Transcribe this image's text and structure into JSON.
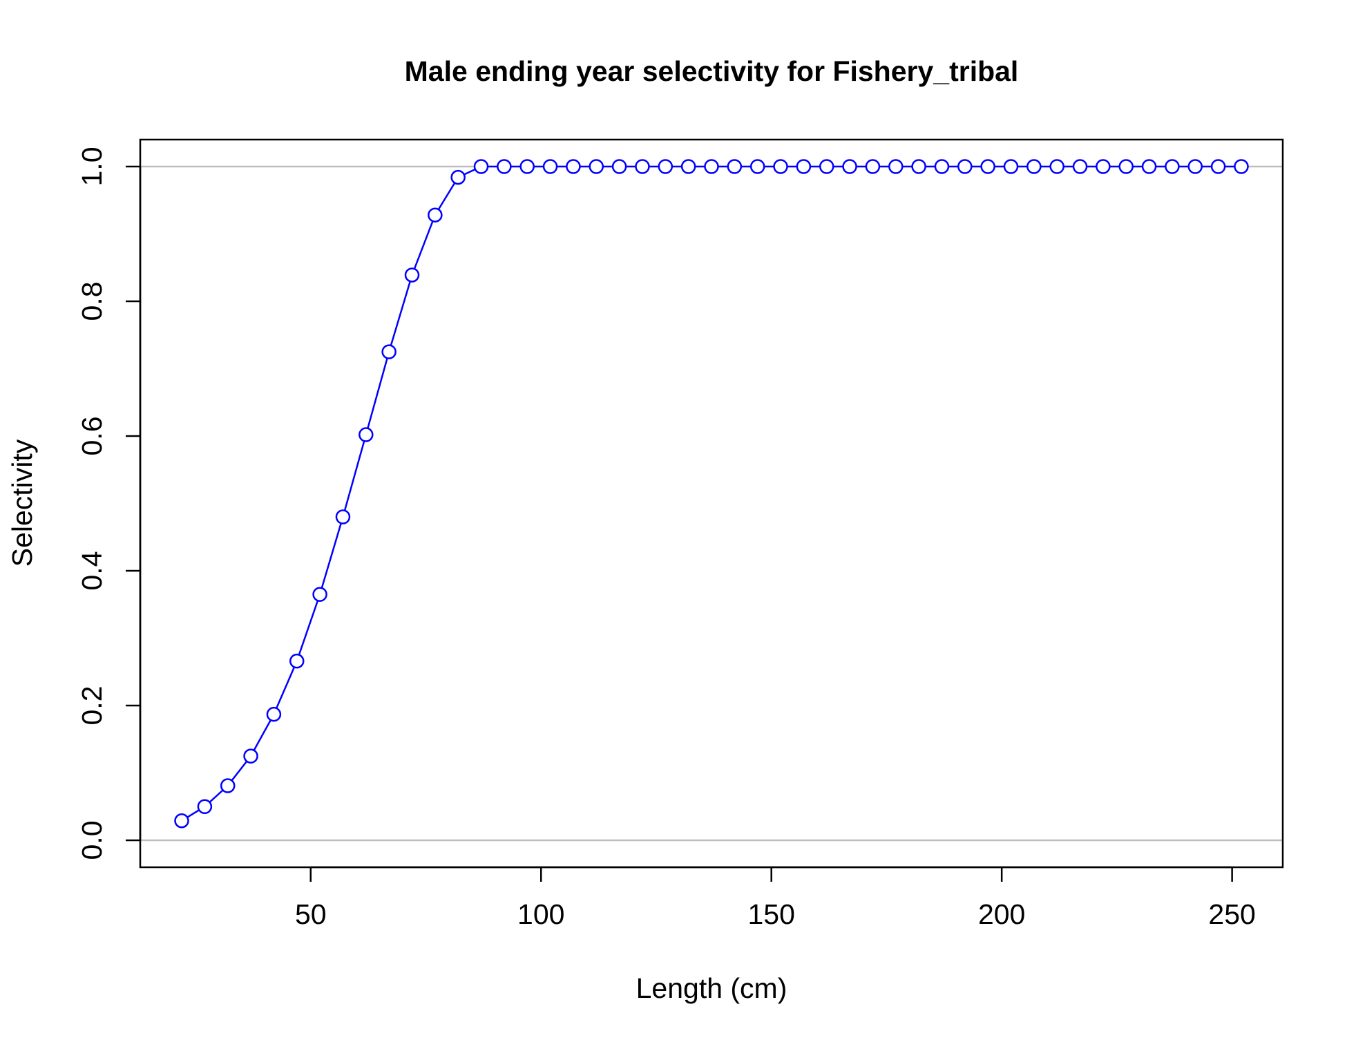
{
  "chart_data": {
    "type": "line",
    "title": "Male ending year selectivity for Fishery_tribal",
    "xlabel": "Length (cm)",
    "ylabel": "Selectivity",
    "xlim": [
      13,
      261
    ],
    "ylim": [
      -0.04,
      1.04
    ],
    "x_ticks": [
      {
        "value": 50,
        "label": "50"
      },
      {
        "value": 100,
        "label": "100"
      },
      {
        "value": 150,
        "label": "150"
      },
      {
        "value": 200,
        "label": "200"
      },
      {
        "value": 250,
        "label": "250"
      }
    ],
    "y_ticks": [
      {
        "value": 0.0,
        "label": "0.0"
      },
      {
        "value": 0.2,
        "label": "0.2"
      },
      {
        "value": 0.4,
        "label": "0.4"
      },
      {
        "value": 0.6,
        "label": "0.6"
      },
      {
        "value": 0.8,
        "label": "0.8"
      },
      {
        "value": 1.0,
        "label": "1.0"
      }
    ],
    "reference_lines": [
      0,
      1
    ],
    "grid": false,
    "legend": "none",
    "colors": {
      "series": "#0000ff",
      "reference_line": "#bebebe",
      "axis": "#000000"
    },
    "series": [
      {
        "marker": "open-circle",
        "x": [
          22,
          27,
          32,
          37,
          42,
          47,
          52,
          57,
          62,
          67,
          72,
          77,
          82,
          87,
          92,
          97,
          102,
          107,
          112,
          117,
          122,
          127,
          132,
          137,
          142,
          147,
          152,
          157,
          162,
          167,
          172,
          177,
          182,
          187,
          192,
          197,
          202,
          207,
          212,
          217,
          222,
          227,
          232,
          237,
          242,
          247,
          252
        ],
        "values": [
          0.029,
          0.05,
          0.081,
          0.125,
          0.187,
          0.266,
          0.365,
          0.48,
          0.602,
          0.725,
          0.839,
          0.928,
          0.984,
          1.0,
          1.0,
          1.0,
          1.0,
          1.0,
          1.0,
          1.0,
          1.0,
          1.0,
          1.0,
          1.0,
          1.0,
          1.0,
          1.0,
          1.0,
          1.0,
          1.0,
          1.0,
          1.0,
          1.0,
          1.0,
          1.0,
          1.0,
          1.0,
          1.0,
          1.0,
          1.0,
          1.0,
          1.0,
          1.0,
          1.0,
          1.0,
          1.0,
          1.0
        ]
      }
    ]
  }
}
